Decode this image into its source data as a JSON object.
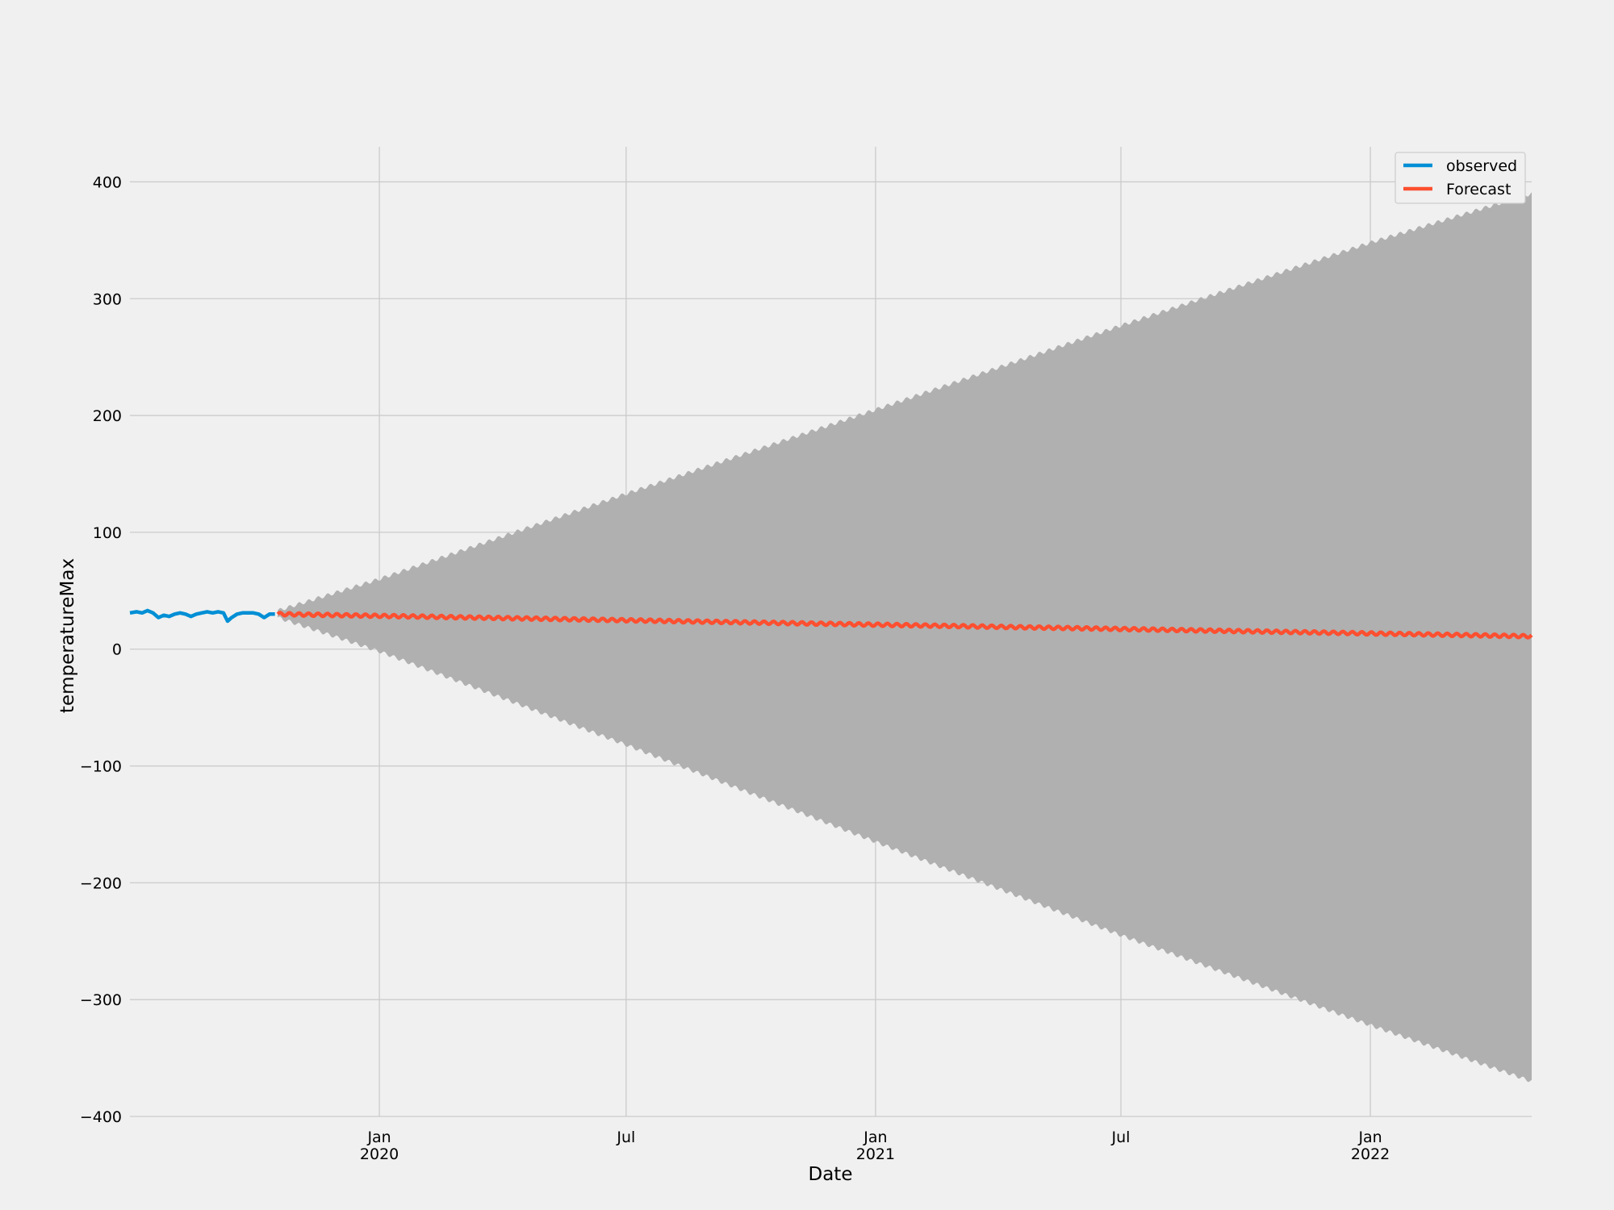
{
  "chart_data": {
    "type": "line",
    "title": "",
    "xlabel": "Date",
    "ylabel": "temperatureMax",
    "x_range": [
      "2019-07-01",
      "2022-04-30"
    ],
    "ylim": [
      -400,
      430
    ],
    "grid": true,
    "legend_position": "top-right",
    "y_ticks": [
      {
        "value": 400,
        "label": "400"
      },
      {
        "value": 300,
        "label": "300"
      },
      {
        "value": 200,
        "label": "200"
      },
      {
        "value": 100,
        "label": "100"
      },
      {
        "value": 0,
        "label": "0"
      },
      {
        "value": -100,
        "label": "−100"
      },
      {
        "value": -200,
        "label": "−200"
      },
      {
        "value": -300,
        "label": "−300"
      },
      {
        "value": -400,
        "label": "−400"
      }
    ],
    "x_ticks": [
      {
        "date": "2020-01-01",
        "label": "Jan",
        "sublabel": "2020"
      },
      {
        "date": "2020-07-01",
        "label": "Jul",
        "sublabel": ""
      },
      {
        "date": "2021-01-01",
        "label": "Jan",
        "sublabel": "2021"
      },
      {
        "date": "2021-07-01",
        "label": "Jul",
        "sublabel": ""
      },
      {
        "date": "2022-01-01",
        "label": "Jan",
        "sublabel": "2022"
      }
    ],
    "series": [
      {
        "name": "observed",
        "color": "#008fd5",
        "points": [
          [
            "2019-07-01",
            31
          ],
          [
            "2019-07-06",
            32
          ],
          [
            "2019-07-10",
            31
          ],
          [
            "2019-07-14",
            33
          ],
          [
            "2019-07-18",
            31
          ],
          [
            "2019-07-22",
            27
          ],
          [
            "2019-07-26",
            29
          ],
          [
            "2019-07-30",
            28
          ],
          [
            "2019-08-03",
            30
          ],
          [
            "2019-08-07",
            31
          ],
          [
            "2019-08-11",
            30
          ],
          [
            "2019-08-15",
            28
          ],
          [
            "2019-08-19",
            30
          ],
          [
            "2019-08-23",
            31
          ],
          [
            "2019-08-27",
            32
          ],
          [
            "2019-08-31",
            31
          ],
          [
            "2019-09-04",
            32
          ],
          [
            "2019-09-08",
            31
          ],
          [
            "2019-09-11",
            24
          ],
          [
            "2019-09-14",
            27
          ],
          [
            "2019-09-18",
            30
          ],
          [
            "2019-09-22",
            31
          ],
          [
            "2019-09-26",
            31
          ],
          [
            "2019-09-30",
            31
          ],
          [
            "2019-10-04",
            30
          ],
          [
            "2019-10-08",
            27
          ],
          [
            "2019-10-12",
            30
          ],
          [
            "2019-10-16",
            30
          ]
        ]
      },
      {
        "name": "Forecast",
        "color": "#fc4f30",
        "start": "2019-10-18",
        "end": "2022-04-30",
        "start_value": 30,
        "end_value": 11
      }
    ],
    "confidence_band": {
      "color": "#b0b0b0",
      "points": [
        {
          "date": "2019-10-18",
          "lower": 27,
          "upper": 33
        },
        {
          "date": "2020-01-01",
          "lower": -2,
          "upper": 60
        },
        {
          "date": "2020-07-01",
          "lower": -82,
          "upper": 133
        },
        {
          "date": "2021-01-01",
          "lower": -165,
          "upper": 205
        },
        {
          "date": "2021-07-01",
          "lower": -245,
          "upper": 277
        },
        {
          "date": "2022-01-01",
          "lower": -322,
          "upper": 348
        },
        {
          "date": "2022-04-30",
          "lower": -370,
          "upper": 390
        }
      ]
    }
  }
}
